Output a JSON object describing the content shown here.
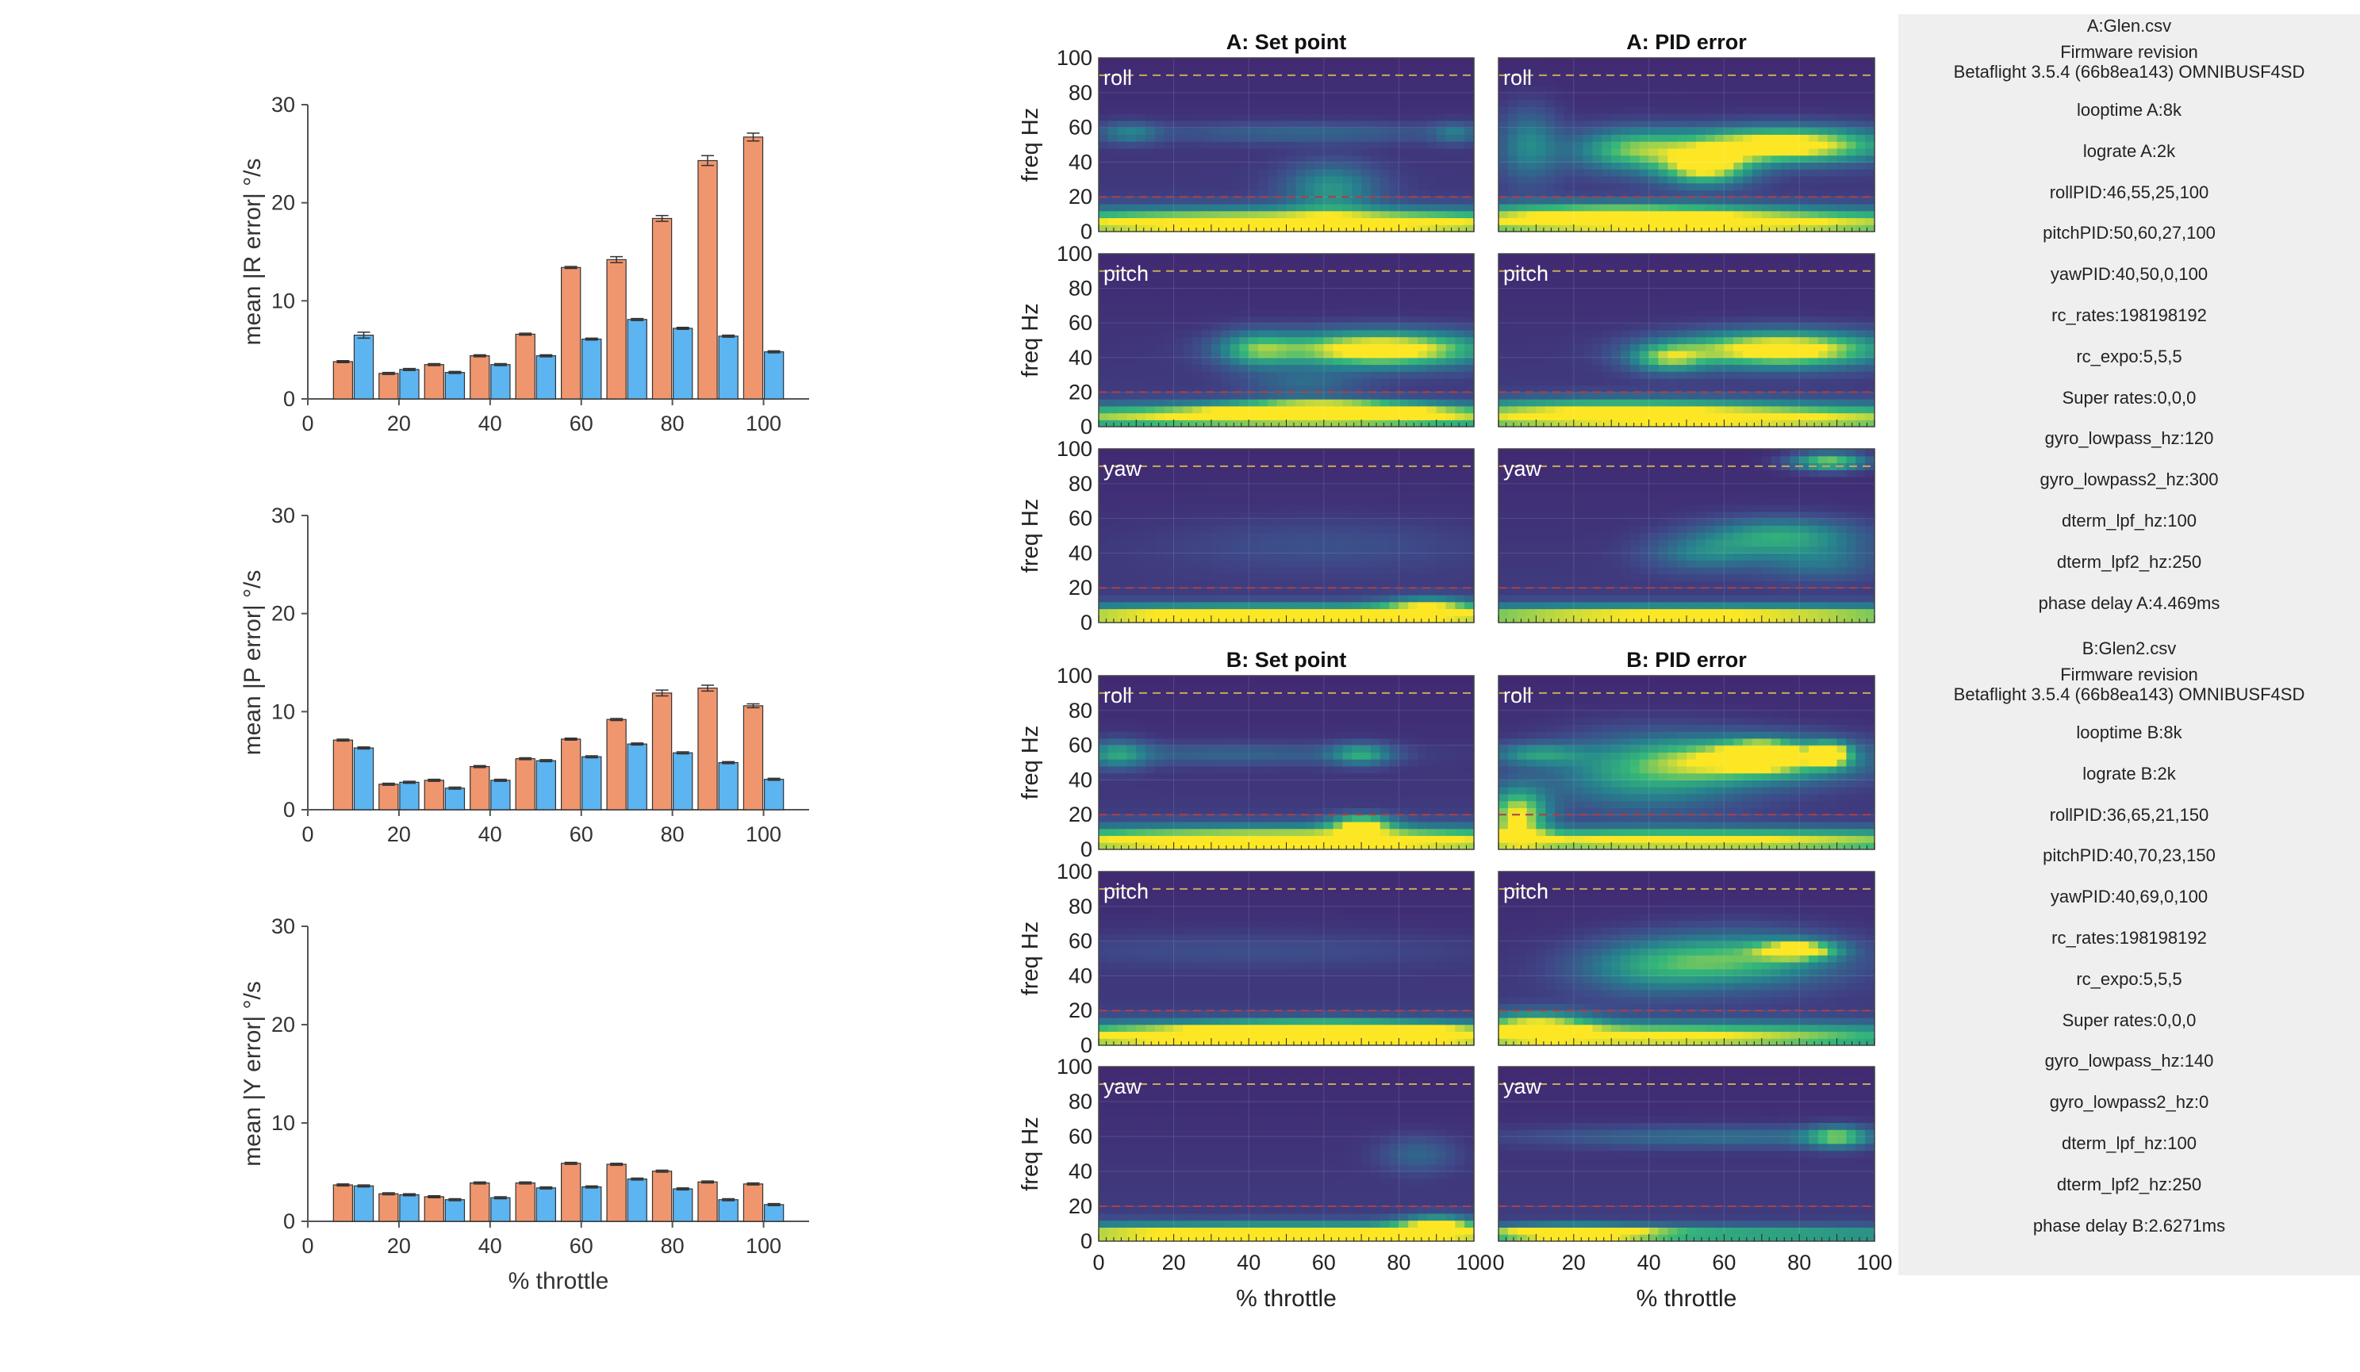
{
  "chart_data": [
    {
      "type": "bar",
      "ylabel": "mean |R error| °/s",
      "xlabel": "",
      "x": [
        10,
        20,
        30,
        40,
        50,
        60,
        70,
        80,
        90,
        100
      ],
      "xlim": [
        0,
        110
      ],
      "ylim": [
        0,
        30
      ],
      "xticks": [
        0,
        20,
        40,
        60,
        80,
        100
      ],
      "yticks": [
        0,
        10,
        20,
        30
      ],
      "series": [
        {
          "color": "#f0966e",
          "values": [
            3.8,
            2.6,
            3.5,
            4.4,
            6.6,
            13.4,
            14.2,
            18.4,
            24.3,
            26.7
          ],
          "err": [
            0.1,
            0.1,
            0.1,
            0.1,
            0.1,
            0.1,
            0.3,
            0.3,
            0.5,
            0.4
          ]
        },
        {
          "color": "#5cb4f0",
          "values": [
            6.5,
            3.0,
            2.7,
            3.5,
            4.4,
            6.1,
            8.1,
            7.2,
            6.4,
            4.8
          ],
          "err": [
            0.3,
            0.1,
            0.1,
            0.1,
            0.1,
            0.1,
            0.1,
            0.1,
            0.1,
            0.1
          ]
        }
      ]
    },
    {
      "type": "bar",
      "ylabel": "mean |P error| °/s",
      "xlabel": "",
      "x": [
        10,
        20,
        30,
        40,
        50,
        60,
        70,
        80,
        90,
        100
      ],
      "xlim": [
        0,
        110
      ],
      "ylim": [
        0,
        30
      ],
      "xticks": [
        0,
        20,
        40,
        60,
        80,
        100
      ],
      "yticks": [
        0,
        10,
        20,
        30
      ],
      "series": [
        {
          "color": "#f0966e",
          "values": [
            7.1,
            2.6,
            3.0,
            4.4,
            5.2,
            7.2,
            9.2,
            11.9,
            12.4,
            10.6
          ],
          "err": [
            0.1,
            0.1,
            0.1,
            0.1,
            0.1,
            0.1,
            0.1,
            0.3,
            0.3,
            0.2
          ]
        },
        {
          "color": "#5cb4f0",
          "values": [
            6.3,
            2.8,
            2.2,
            3.0,
            5.0,
            5.4,
            6.7,
            5.8,
            4.8,
            3.1
          ],
          "err": [
            0.1,
            0.1,
            0.1,
            0.1,
            0.1,
            0.1,
            0.1,
            0.1,
            0.1,
            0.1
          ]
        }
      ]
    },
    {
      "type": "bar",
      "ylabel": "mean |Y error| °/s",
      "xlabel": "% throttle",
      "x": [
        10,
        20,
        30,
        40,
        50,
        60,
        70,
        80,
        90,
        100
      ],
      "xlim": [
        0,
        110
      ],
      "ylim": [
        0,
        30
      ],
      "xticks": [
        0,
        20,
        40,
        60,
        80,
        100
      ],
      "yticks": [
        0,
        10,
        20,
        30
      ],
      "series": [
        {
          "color": "#f0966e",
          "values": [
            3.7,
            2.8,
            2.5,
            3.9,
            3.9,
            5.9,
            5.8,
            5.1,
            4.0,
            3.8
          ],
          "err": [
            0.1,
            0.1,
            0.1,
            0.1,
            0.1,
            0.1,
            0.1,
            0.1,
            0.1,
            0.1
          ]
        },
        {
          "color": "#5cb4f0",
          "values": [
            3.6,
            2.7,
            2.2,
            2.4,
            3.4,
            3.5,
            4.3,
            3.3,
            2.2,
            1.7
          ],
          "err": [
            0.1,
            0.1,
            0.1,
            0.1,
            0.1,
            0.1,
            0.1,
            0.1,
            0.1,
            0.1
          ]
        }
      ]
    },
    {
      "type": "heatmap",
      "ylabel": "freq Hz",
      "xlabel": "% throttle",
      "xlim": [
        0,
        100
      ],
      "ylim": [
        0,
        100
      ],
      "xticks": [
        0,
        20,
        40,
        60,
        80,
        100
      ],
      "yticks": [
        0,
        20,
        40,
        60,
        80,
        100
      ],
      "colormap": [
        "#440154",
        "#3e4a89",
        "#26828e",
        "#35b779",
        "#fde725"
      ],
      "dashed_lines": [
        {
          "y": 90,
          "color": "#c8a85a"
        },
        {
          "y": 20,
          "color": "#b04040"
        }
      ],
      "panels": [
        {
          "title": "A: Set point",
          "row_label": "roll",
          "blobs": [
            [
              50,
              5,
              100,
              8,
              1.0
            ],
            [
              62,
              25,
              12,
              14,
              0.4
            ],
            [
              55,
              57,
              40,
              6,
              0.2
            ],
            [
              8,
              57,
              8,
              6,
              0.3
            ],
            [
              95,
              57,
              6,
              6,
              0.25
            ]
          ]
        },
        {
          "title": "A: PID error",
          "row_label": "roll",
          "blobs": [
            [
              50,
              5,
              100,
              8,
              0.9
            ],
            [
              75,
              50,
              28,
              10,
              1.0
            ],
            [
              55,
              37,
              12,
              10,
              0.8
            ],
            [
              35,
              47,
              15,
              12,
              0.55
            ],
            [
              8,
              50,
              8,
              20,
              0.35
            ],
            [
              30,
              12,
              40,
              6,
              0.4
            ]
          ]
        },
        {
          "title": "",
          "row_label": "pitch",
          "blobs": [
            [
              50,
              6,
              100,
              7,
              0.85
            ],
            [
              60,
              10,
              25,
              5,
              0.9
            ],
            [
              75,
              45,
              28,
              10,
              1.0
            ],
            [
              42,
              45,
              10,
              10,
              0.45
            ],
            [
              55,
              25,
              15,
              8,
              0.2
            ]
          ]
        },
        {
          "title": "",
          "row_label": "pitch",
          "blobs": [
            [
              50,
              5,
              100,
              8,
              0.9
            ],
            [
              75,
              45,
              27,
              10,
              1.0
            ],
            [
              45,
              40,
              10,
              8,
              0.55
            ],
            [
              30,
              12,
              40,
              6,
              0.3
            ]
          ]
        },
        {
          "title": "",
          "row_label": "yaw",
          "blobs": [
            [
              50,
              4,
              100,
              6,
              1.0
            ],
            [
              88,
              10,
              12,
              5,
              0.5
            ],
            [
              60,
              45,
              40,
              15,
              0.1
            ]
          ]
        },
        {
          "title": "",
          "row_label": "yaw",
          "blobs": [
            [
              50,
              4,
              100,
              6,
              0.9
            ],
            [
              88,
              93,
              10,
              5,
              0.7
            ],
            [
              75,
              50,
              20,
              10,
              0.5
            ],
            [
              55,
              40,
              15,
              10,
              0.3
            ],
            [
              85,
              35,
              15,
              10,
              0.25
            ]
          ]
        },
        {
          "title": "B: Set point",
          "row_label": "roll",
          "blobs": [
            [
              50,
              5,
              100,
              8,
              1.0
            ],
            [
              70,
              15,
              8,
              5,
              0.7
            ],
            [
              5,
              55,
              8,
              8,
              0.4
            ],
            [
              70,
              55,
              8,
              6,
              0.45
            ],
            [
              35,
              55,
              40,
              6,
              0.2
            ]
          ]
        },
        {
          "title": "B: PID error",
          "row_label": "roll",
          "blobs": [
            [
              50,
              5,
              100,
              7,
              0.85
            ],
            [
              5,
              20,
              8,
              15,
              0.8
            ],
            [
              70,
              52,
              25,
              12,
              0.8
            ],
            [
              70,
              55,
              8,
              6,
              1.0
            ],
            [
              88,
              55,
              5,
              6,
              0.9
            ],
            [
              40,
              45,
              25,
              20,
              0.5
            ],
            [
              10,
              55,
              12,
              6,
              0.4
            ]
          ]
        },
        {
          "title": "",
          "row_label": "pitch",
          "blobs": [
            [
              50,
              5,
              100,
              8,
              1.0
            ],
            [
              60,
              8,
              30,
              5,
              0.9
            ],
            [
              40,
              55,
              60,
              10,
              0.1
            ]
          ]
        },
        {
          "title": "",
          "row_label": "pitch",
          "blobs": [
            [
              40,
              5,
              85,
              8,
              0.85
            ],
            [
              80,
              55,
              10,
              5,
              0.8
            ],
            [
              65,
              50,
              25,
              15,
              0.55
            ],
            [
              40,
              45,
              20,
              15,
              0.35
            ],
            [
              10,
              12,
              15,
              8,
              0.6
            ]
          ]
        },
        {
          "title": "",
          "row_label": "yaw",
          "blobs": [
            [
              50,
              4,
              100,
              6,
              1.0
            ],
            [
              90,
              10,
              10,
              5,
              0.6
            ],
            [
              85,
              50,
              10,
              10,
              0.2
            ]
          ]
        },
        {
          "title": "",
          "row_label": "yaw",
          "blobs": [
            [
              50,
              4,
              100,
              5,
              0.55
            ],
            [
              20,
              5,
              20,
              4,
              0.8
            ],
            [
              90,
              60,
              8,
              6,
              0.55
            ],
            [
              60,
              60,
              50,
              6,
              0.25
            ]
          ]
        }
      ]
    }
  ],
  "info": {
    "a_lines": [
      "A:Glen.csv",
      "Firmware revision",
      "Betaflight 3.5.4 (66b8ea143) OMNIBUSF4SD",
      "looptime A:8k",
      "lograte A:2k",
      "rollPID:46,55,25,100",
      "pitchPID:50,60,27,100",
      "yawPID:40,50,0,100",
      "rc_rates:198198192",
      "rc_expo:5,5,5",
      "Super rates:0,0,0",
      "gyro_lowpass_hz:120",
      "gyro_lowpass2_hz:300",
      "dterm_lpf_hz:100",
      "dterm_lpf2_hz:250",
      "phase delay A:4.469ms"
    ],
    "b_lines": [
      "B:Glen2.csv",
      "Firmware revision",
      "Betaflight 3.5.4 (66b8ea143) OMNIBUSF4SD",
      "looptime B:8k",
      "lograte B:2k",
      "rollPID:36,65,21,150",
      "pitchPID:40,70,23,150",
      "yawPID:40,69,0,100",
      "rc_rates:198198192",
      "rc_expo:5,5,5",
      "Super rates:0,0,0",
      "gyro_lowpass_hz:140",
      "gyro_lowpass2_hz:0",
      "dterm_lpf_hz:100",
      "dterm_lpf2_hz:250",
      "phase delay B:2.6271ms"
    ]
  }
}
